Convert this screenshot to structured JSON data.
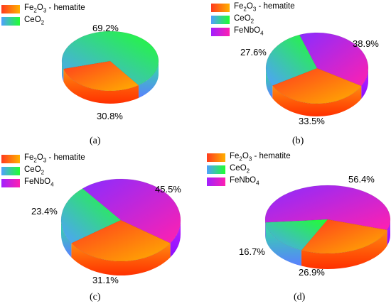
{
  "legend_labels": {
    "fe2o3": {
      "pre": "Fe",
      "s1": "2",
      "mid": "O",
      "s2": "3",
      "post": " - hematite"
    },
    "ceo2": {
      "pre": "CeO",
      "s1": "2"
    },
    "fenbo4": {
      "pre": "FeNbO",
      "s1": "4"
    }
  },
  "colors": {
    "fe2o3": [
      "#ff3b1e",
      "#ffb000"
    ],
    "ceo2": [
      "#4fa0ff",
      "#20ff30"
    ],
    "fenbo4": [
      "#a020ff",
      "#ff20b0"
    ]
  },
  "chart_data": [
    {
      "type": "pie",
      "panel": "(a)",
      "categories": [
        "Fe2O3 - hematite",
        "CeO2"
      ],
      "values": [
        30.8,
        69.2
      ],
      "labels": [
        "30.8%",
        "69.2%"
      ]
    },
    {
      "type": "pie",
      "panel": "(b)",
      "categories": [
        "Fe2O3 - hematite",
        "CeO2",
        "FeNbO4"
      ],
      "values": [
        33.5,
        27.6,
        38.9
      ],
      "labels": [
        "33.5%",
        "27.6%",
        "38.9%"
      ]
    },
    {
      "type": "pie",
      "panel": "(c)",
      "categories": [
        "Fe2O3 - hematite",
        "CeO2",
        "FeNbO4"
      ],
      "values": [
        31.1,
        23.4,
        45.5
      ],
      "labels": [
        "31.1%",
        "23.4%",
        "45.5%"
      ]
    },
    {
      "type": "pie",
      "panel": "(d)",
      "categories": [
        "Fe2O3 - hematite",
        "CeO2",
        "FeNbO4"
      ],
      "values": [
        26.9,
        16.7,
        56.4
      ],
      "labels": [
        "26.9%",
        "16.7%",
        "56.4%"
      ]
    }
  ]
}
